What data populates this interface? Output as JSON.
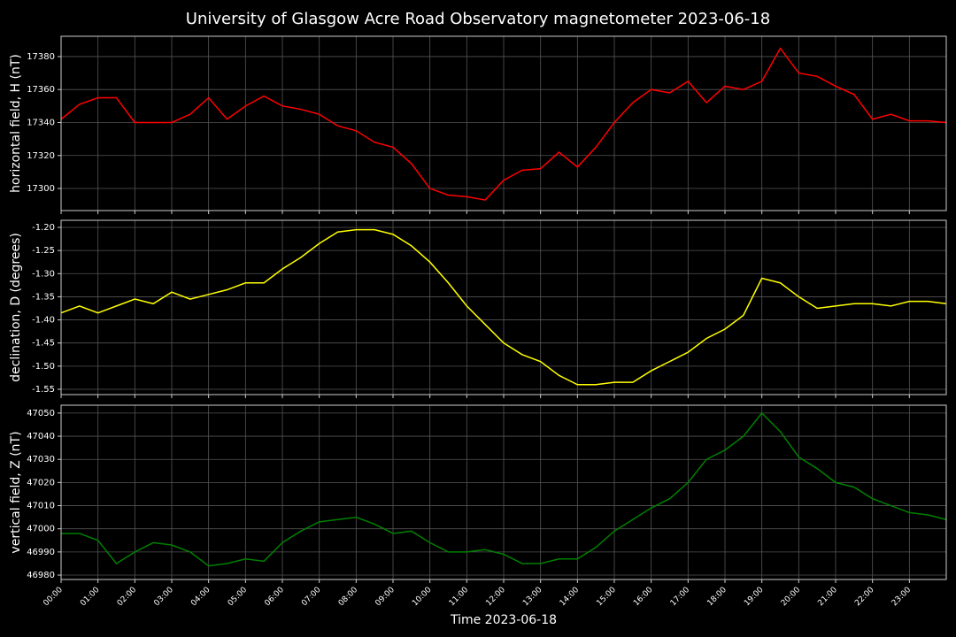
{
  "title": "University of Glasgow Acre Road Observatory magnetometer 2023-06-18",
  "chart_data": [
    {
      "type": "line",
      "ylabel": "horizontal field, H (nT)",
      "color": "#ff0000",
      "grid": true,
      "x": [
        0,
        0.5,
        1,
        1.5,
        2,
        2.5,
        3,
        3.5,
        4,
        4.5,
        5,
        5.5,
        6,
        6.5,
        7,
        7.5,
        8,
        8.5,
        9,
        9.5,
        10,
        10.5,
        11,
        11.5,
        12,
        12.5,
        13,
        13.5,
        14,
        14.5,
        15,
        15.5,
        16,
        16.5,
        17,
        17.5,
        18,
        18.5,
        19,
        19.5,
        20,
        20.5,
        21,
        21.5,
        22,
        22.5,
        23,
        23.5,
        24
      ],
      "values": [
        17342,
        17351,
        17355,
        17355,
        17340,
        17340,
        17340,
        17345,
        17355,
        17342,
        17350,
        17356,
        17350,
        17348,
        17345,
        17338,
        17335,
        17328,
        17325,
        17315,
        17300,
        17296,
        17295,
        17293,
        17305,
        17311,
        17312,
        17322,
        17313,
        17325,
        17340,
        17352,
        17360,
        17358,
        17365,
        17352,
        17362,
        17360,
        17365,
        17385,
        17370,
        17368,
        17362,
        17357,
        17342,
        17345,
        17341,
        17341,
        17340
      ],
      "xlim": [
        0,
        24
      ],
      "xticks": [
        0,
        1,
        2,
        3,
        4,
        5,
        6,
        7,
        8,
        9,
        10,
        11,
        12,
        13,
        14,
        15,
        16,
        17,
        18,
        19,
        20,
        21,
        22,
        23
      ],
      "ylim": [
        17286.6,
        17392.3
      ],
      "yticks": [
        17300,
        17320,
        17340,
        17360,
        17380
      ]
    },
    {
      "type": "line",
      "ylabel": "declination, D (degrees)",
      "color": "#ffff00",
      "grid": true,
      "x": [
        0,
        0.5,
        1,
        1.5,
        2,
        2.5,
        3,
        3.5,
        4,
        4.5,
        5,
        5.5,
        6,
        6.5,
        7,
        7.5,
        8,
        8.5,
        9,
        9.5,
        10,
        10.5,
        11,
        11.5,
        12,
        12.5,
        13,
        13.5,
        14,
        14.5,
        15,
        15.5,
        16,
        16.5,
        17,
        17.5,
        18,
        18.5,
        19,
        19.5,
        20,
        20.5,
        21,
        21.5,
        22,
        22.5,
        23,
        23.5,
        24
      ],
      "values": [
        -1.385,
        -1.37,
        -1.385,
        -1.37,
        -1.355,
        -1.365,
        -1.34,
        -1.355,
        -1.345,
        -1.335,
        -1.32,
        -1.32,
        -1.29,
        -1.265,
        -1.235,
        -1.21,
        -1.205,
        -1.205,
        -1.215,
        -1.24,
        -1.275,
        -1.32,
        -1.37,
        -1.41,
        -1.45,
        -1.475,
        -1.49,
        -1.52,
        -1.54,
        -1.54,
        -1.535,
        -1.535,
        -1.51,
        -1.49,
        -1.47,
        -1.44,
        -1.42,
        -1.39,
        -1.31,
        -1.32,
        -1.35,
        -1.375,
        -1.37,
        -1.365,
        -1.365,
        -1.37,
        -1.36,
        -1.36,
        -1.365
      ],
      "xlim": [
        0,
        24
      ],
      "xticks": [
        0,
        1,
        2,
        3,
        4,
        5,
        6,
        7,
        8,
        9,
        10,
        11,
        12,
        13,
        14,
        15,
        16,
        17,
        18,
        19,
        20,
        21,
        22,
        23
      ],
      "ylim": [
        -1.5615,
        -1.1847
      ],
      "yticks": [
        -1.55,
        {
          "value": -1.5,
          "label": "-1.50"
        },
        -1.45,
        {
          "value": -1.4,
          "label": "-1.40"
        },
        -1.35,
        {
          "value": -1.3,
          "label": "-1.30"
        },
        -1.25,
        {
          "value": -1.2,
          "label": "-1.20"
        }
      ]
    },
    {
      "type": "line",
      "ylabel": "vertical field, Z (nT)",
      "xlabel": "Time 2023-06-18",
      "color": "#008000",
      "grid": true,
      "x": [
        0,
        0.5,
        1,
        1.5,
        2,
        2.5,
        3,
        3.5,
        4,
        4.5,
        5,
        5.5,
        6,
        6.5,
        7,
        7.5,
        8,
        8.5,
        9,
        9.5,
        10,
        10.5,
        11,
        11.5,
        12,
        12.5,
        13,
        13.5,
        14,
        14.5,
        15,
        15.5,
        16,
        16.5,
        17,
        17.5,
        18,
        18.5,
        19,
        19.5,
        20,
        20.5,
        21,
        21.5,
        22,
        22.5,
        23,
        23.5,
        24
      ],
      "values": [
        46998,
        46998,
        46995,
        46985,
        46990,
        46994,
        46993,
        46990,
        46984,
        46985,
        46987,
        46986,
        46994,
        46999,
        47003,
        47004,
        47005,
        47002,
        46998,
        46999,
        46994,
        46990,
        46990,
        46991,
        46989,
        46985,
        46985,
        46987,
        46987,
        46992,
        46999,
        47004,
        47009,
        47013,
        47020,
        47030,
        47034,
        47040,
        47050,
        47042,
        47031,
        47026,
        47020,
        47018,
        47013,
        47010,
        47007,
        47006,
        47004
      ],
      "xlim": [
        0,
        24
      ],
      "xticks": [
        {
          "value": 0,
          "label": "00:00"
        },
        {
          "value": 1,
          "label": "01:00"
        },
        {
          "value": 2,
          "label": "02:00"
        },
        {
          "value": 3,
          "label": "03:00"
        },
        {
          "value": 4,
          "label": "04:00"
        },
        {
          "value": 5,
          "label": "05:00"
        },
        {
          "value": 6,
          "label": "06:00"
        },
        {
          "value": 7,
          "label": "07:00"
        },
        {
          "value": 8,
          "label": "08:00"
        },
        {
          "value": 9,
          "label": "09:00"
        },
        {
          "value": 10,
          "label": "10:00"
        },
        {
          "value": 11,
          "label": "11:00"
        },
        {
          "value": 12,
          "label": "12:00"
        },
        {
          "value": 13,
          "label": "13:00"
        },
        {
          "value": 14,
          "label": "14:00"
        },
        {
          "value": 15,
          "label": "15:00"
        },
        {
          "value": 16,
          "label": "16:00"
        },
        {
          "value": 17,
          "label": "17:00"
        },
        {
          "value": 18,
          "label": "18:00"
        },
        {
          "value": 19,
          "label": "19:00"
        },
        {
          "value": 20,
          "label": "20:00"
        },
        {
          "value": 21,
          "label": "21:00"
        },
        {
          "value": 22,
          "label": "22:00"
        },
        {
          "value": 23,
          "label": "23:00"
        }
      ],
      "ylim": [
        46978.1,
        47053.4
      ],
      "yticks": [
        46980,
        46990,
        47000,
        47010,
        47020,
        47030,
        47040,
        47050
      ]
    }
  ]
}
